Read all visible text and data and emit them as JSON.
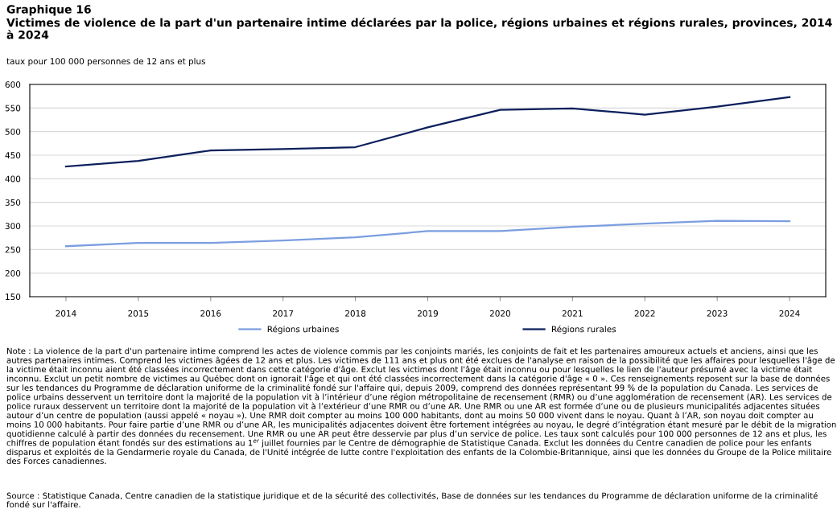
{
  "chart_data": {
    "type": "line",
    "title": "Graphique 16",
    "subtitle": "Victimes de violence de la part d'un partenaire intime déclarées par la police, régions urbaines et régions rurales, provinces, 2014 à 2024",
    "ylabel": "taux pour 100 000 personnes de 12 ans et plus",
    "categories": [
      "2014",
      "2015",
      "2016",
      "2017",
      "2018",
      "2019",
      "2020",
      "2021",
      "2022",
      "2023",
      "2024"
    ],
    "series": [
      {
        "name": "Régions urbaines",
        "color": "#7b9ee0",
        "values": [
          257,
          264,
          264,
          269,
          276,
          289,
          289,
          298,
          305,
          311,
          310
        ]
      },
      {
        "name": "Régions rurales",
        "color": "#0c1f5c",
        "values": [
          426,
          438,
          460,
          463,
          467,
          509,
          546,
          549,
          536,
          553,
          573
        ]
      }
    ],
    "ylim": [
      150,
      600
    ],
    "yticks": [
      150,
      200,
      250,
      300,
      350,
      400,
      450,
      500,
      550,
      600
    ],
    "grid": "y",
    "legend": "bottom",
    "marker": "none",
    "line_style": "solid",
    "annotations": [
      "Note : La violence de la part d'un partenaire intime comprend les actes de violence commis par les conjoints mariés, les conjoints de fait et les partenaires amoureux actuels et anciens, ainsi que les autres partenaires intimes. Comprend les victimes âgées de 12 ans et plus. Les victimes de 111 ans et plus ont été exclues de l'analyse en raison de la possibilité que les affaires pour lesquelles l'âge de la victime était inconnu aient été classées incorrectement dans cette catégorie d'âge. Exclut les victimes dont l'âge était inconnu ou pour lesquelles le lien de l'auteur présumé avec la victime était inconnu. Exclut un petit nombre de victimes au Québec dont on ignorait l'âge et qui ont été classées incorrectement dans la catégorie d'âge « 0 ». Ces renseignements reposent sur la base de données sur les tendances du Programme de déclaration uniforme de la criminalité fondé sur l'affaire qui, depuis 2009, comprend des données représentant 99 % de la population du Canada. Les services de police urbains desservent un territoire dont la majorité de la population vit à l’intérieur d’une région métropolitaine de recensement (RMR) ou d’une agglomération de recensement (AR). Les services de police ruraux desservent un territoire dont la majorité de la population vit à l’extérieur d’une RMR ou d’une AR. Une RMR ou une AR est formée d’une ou de plusieurs municipalités adjacentes situées autour d’un centre de population (aussi appelé « noyau »). Une RMR doit compter au moins 100 000 habitants, dont au moins 50 000 vivent dans le noyau. Quant à l’AR, son noyau doit compter au moins 10 000 habitants. Pour faire partie d’une RMR ou d’une AR, les municipalités adjacentes doivent être fortement intégrées au noyau, le degré d’intégration étant mesuré par le débit de la migration quotidienne calculé à partir des données du recensement. Une RMR ou une AR peut être desservie par plus d’un service de police. Les taux sont calculés pour 100 000 personnes de 12 ans et plus, les chiffres de population étant fondés sur des estimations au 1$^{er}$ juillet fournies par le Centre de démographie de Statistique Canada. Exclut les données du Centre canadien de police pour les enfants disparus et exploités de la Gendarmerie royale du Canada, de l'Unité intégrée de lutte contre l'exploitation des enfants de la Colombie-Britannique, ainsi que les données du Groupe de la Police militaire des Forces canadiennes.",
      "Source : Statistique Canada, Centre canadien de la statistique juridique et de la sécurité des collectivités, Base de données sur les tendances du Programme de déclaration uniforme de la criminalité fondé sur l'affaire."
    ]
  }
}
